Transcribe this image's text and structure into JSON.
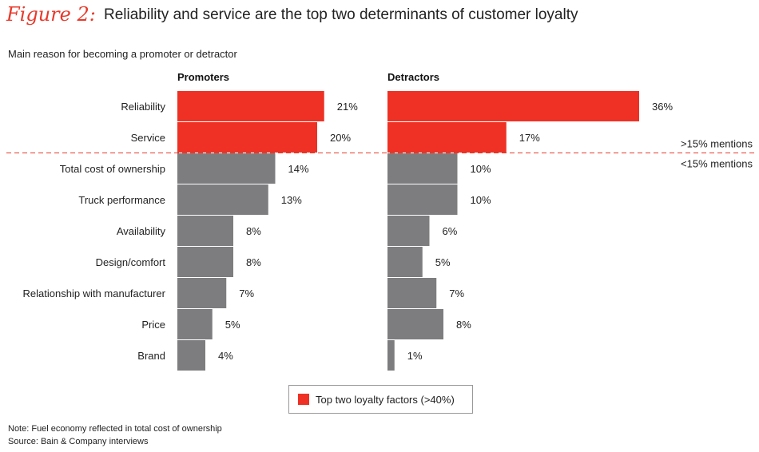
{
  "figure_label": "Figure 2:",
  "title": "Reliability and service are the top two determinants of customer loyalty",
  "subtitle": "Main reason for becoming a promoter or detractor",
  "threshold": {
    "above_label": ">15% mentions",
    "below_label": "<15% mentions"
  },
  "legend": {
    "label": "Top two loyalty factors (>40%)",
    "color": "#ee3124"
  },
  "note": "Note: Fuel economy reflected in total cost of ownership",
  "source": "Source: Bain & Company interviews",
  "colors": {
    "highlight": "#ee3124",
    "other": "#7d7d7f",
    "divider": "#e8392a"
  },
  "chart_data": {
    "type": "bar",
    "orientation": "horizontal",
    "categories": [
      "Reliability",
      "Service",
      "Total cost of ownership",
      "Truck performance",
      "Availability",
      "Design/comfort",
      "Relationship with manufacturer",
      "Price",
      "Brand"
    ],
    "highlighted": [
      true,
      true,
      false,
      false,
      false,
      false,
      false,
      false,
      false
    ],
    "unit": "%",
    "series": [
      {
        "name": "Promoters",
        "values": [
          21,
          20,
          14,
          13,
          8,
          8,
          7,
          5,
          4
        ]
      },
      {
        "name": "Detractors",
        "values": [
          36,
          17,
          10,
          10,
          6,
          5,
          7,
          8,
          1
        ]
      }
    ]
  }
}
